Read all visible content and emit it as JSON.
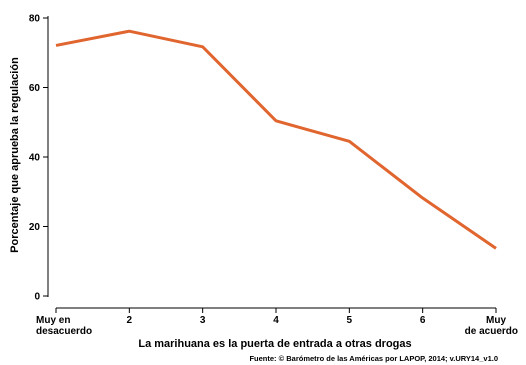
{
  "chart_data": {
    "type": "line",
    "x": [
      1,
      2,
      3,
      4,
      5,
      6,
      7
    ],
    "x_tick_labels": [
      [
        "Muy en",
        "desacuerdo"
      ],
      [
        "2"
      ],
      [
        "3"
      ],
      [
        "4"
      ],
      [
        "5"
      ],
      [
        "6"
      ],
      [
        "Muy",
        "de acuerdo"
      ]
    ],
    "series": [
      {
        "values": [
          72.1,
          76.2,
          71.7,
          50.4,
          44.5,
          28.2,
          13.7
        ]
      }
    ],
    "xlabel": "La marihuana es la puerta de entrada a otras drogas",
    "ylabel": "Porcentaje que aprueba la regulación",
    "yticks": [
      0,
      20,
      40,
      60,
      80
    ],
    "ylim": [
      0,
      80
    ],
    "grid": false,
    "line_color": "#e0652e",
    "source": "Fuente: © Barómetro de las Américas por LAPOP, 2014; v.URY14_v1.0"
  }
}
